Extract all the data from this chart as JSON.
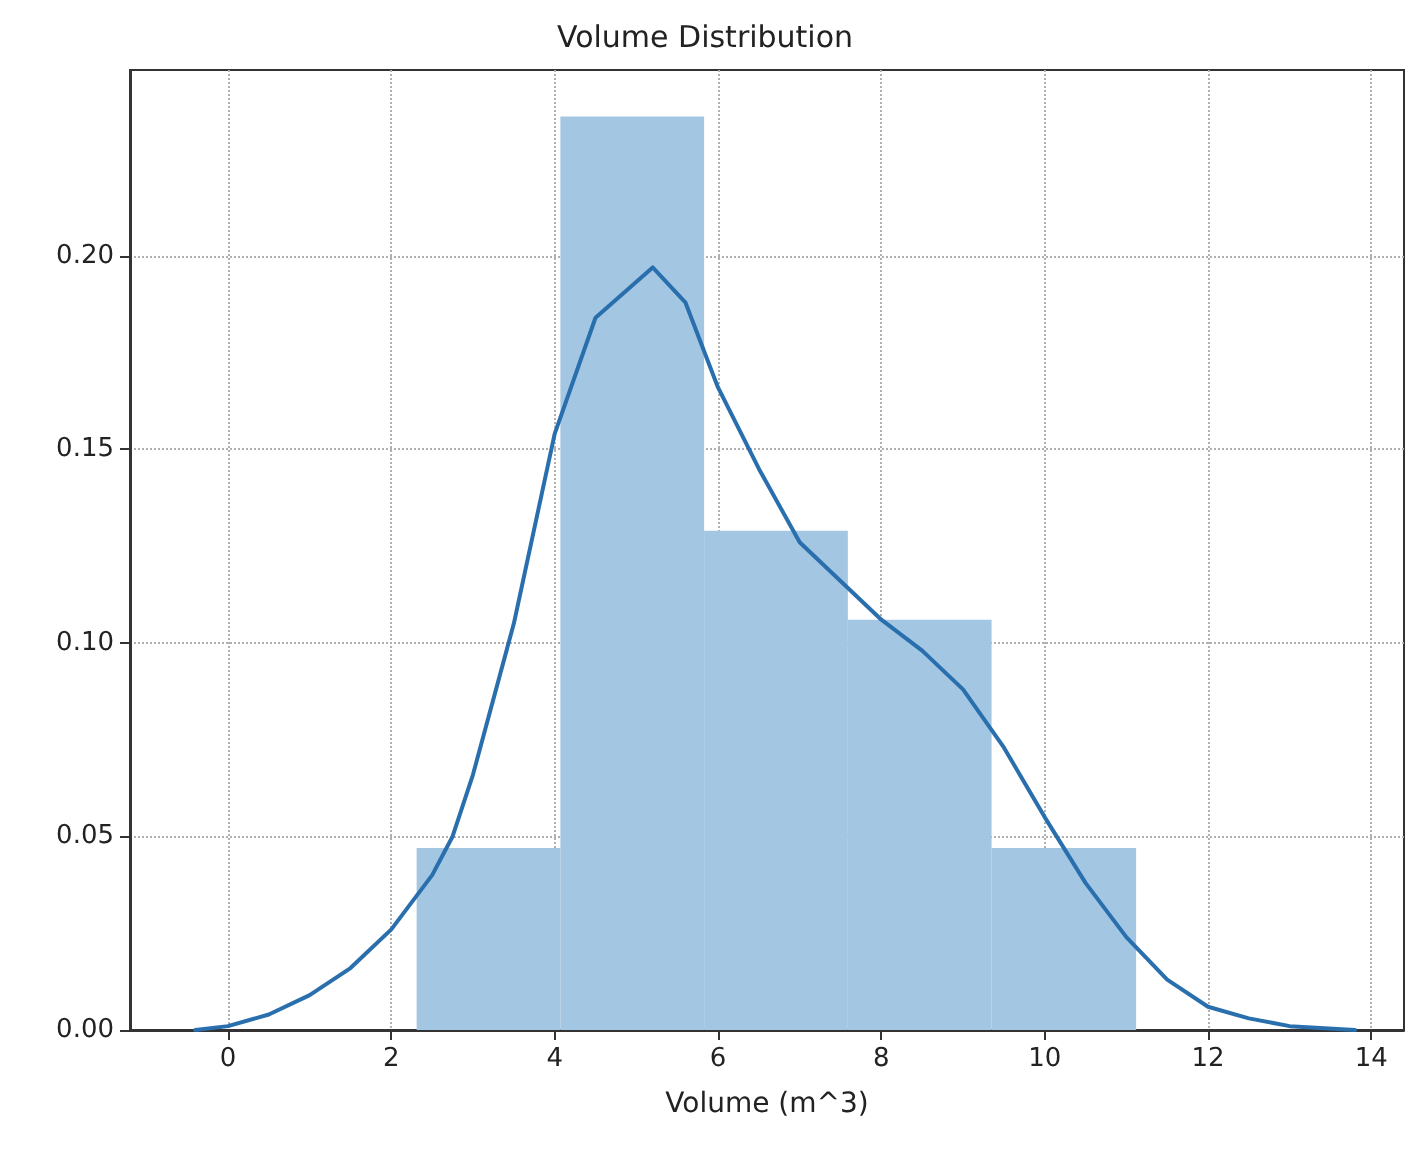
{
  "chart_data": {
    "type": "histogram",
    "title": "Volume Distribution",
    "xlabel": "Volume (m^3)",
    "bins": [
      2.31,
      4.07,
      5.83,
      7.59,
      9.35,
      11.12
    ],
    "values": [
      0.047,
      0.236,
      0.129,
      0.106,
      0.047
    ],
    "color": "#a3c6e2",
    "series": [
      {
        "type": "line",
        "color": "#2a6fad",
        "x": [
          -0.4,
          0,
          0.5,
          1,
          1.5,
          2,
          2.5,
          2.75,
          3,
          3.5,
          4,
          4.5,
          5.2,
          5.6,
          6,
          6.5,
          7,
          7.5,
          8,
          8.5,
          9,
          9.5,
          10,
          10.5,
          11,
          11.5,
          12,
          12.5,
          13,
          13.8
        ],
        "values": [
          0,
          0.001,
          0.004,
          0.009,
          0.016,
          0.026,
          0.04,
          0.05,
          0.066,
          0.105,
          0.154,
          0.184,
          0.197,
          0.188,
          0.166,
          0.145,
          0.126,
          0.116,
          0.106,
          0.098,
          0.088,
          0.073,
          0.055,
          0.038,
          0.024,
          0.013,
          0.006,
          0.003,
          0.001,
          0
        ]
      }
    ],
    "xlim": [
      -1.2,
      14.4
    ],
    "ylim": [
      0,
      0.248
    ],
    "xticks": [
      0,
      2,
      4,
      6,
      8,
      10,
      12,
      14
    ],
    "yticks": [
      {
        "value": 0,
        "label": "0.00"
      },
      {
        "value": 0.05,
        "label": "0.05"
      },
      {
        "value": 0.1,
        "label": "0.10"
      },
      {
        "value": 0.15,
        "label": "0.15"
      },
      {
        "value": 0.2,
        "label": "0.20"
      }
    ],
    "grid": true
  }
}
